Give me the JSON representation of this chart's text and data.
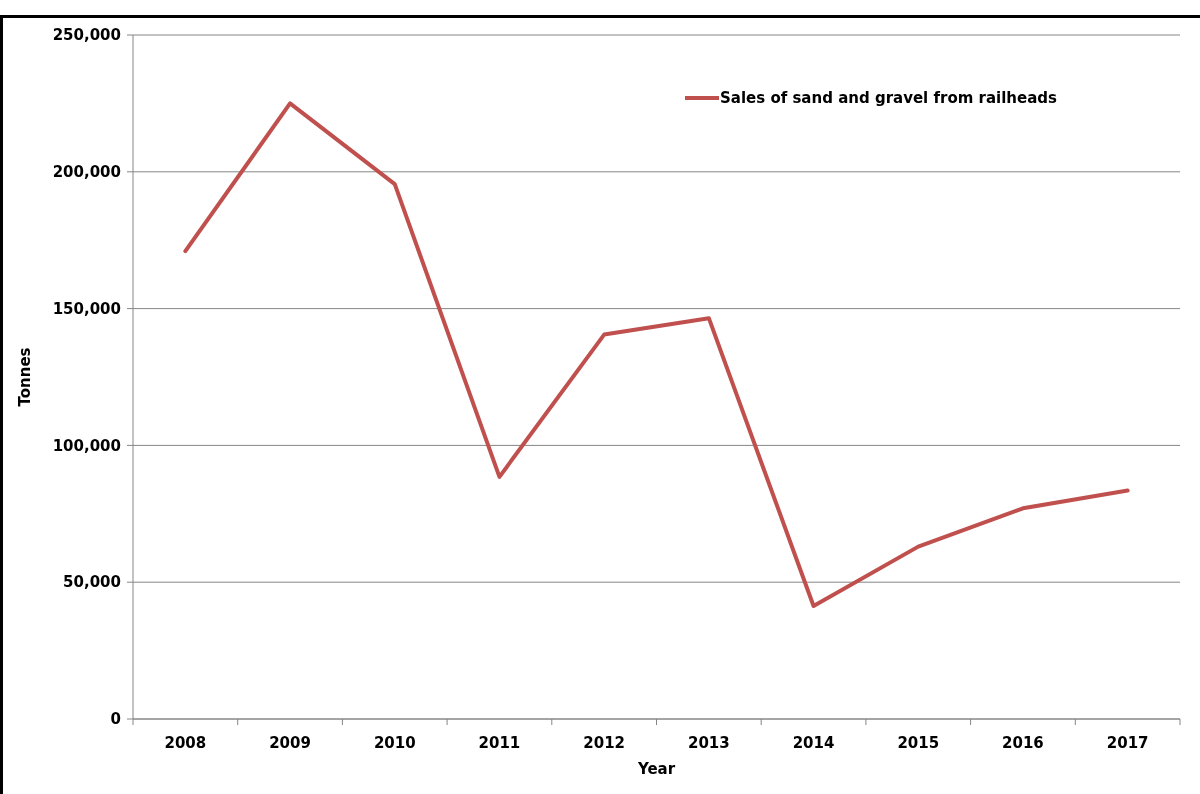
{
  "chart_data": {
    "type": "line",
    "xlabel": "Year",
    "ylabel": "Tonnes",
    "categories": [
      "2008",
      "2009",
      "2010",
      "2011",
      "2012",
      "2013",
      "2014",
      "2015",
      "2016",
      "2017"
    ],
    "series": [
      {
        "name": "Sales of sand and gravel from railheads",
        "color": "#c0504d",
        "values": [
          171000,
          225000,
          195500,
          88500,
          140500,
          146500,
          41300,
          63000,
          77000,
          83500
        ]
      }
    ],
    "ylim": [
      0,
      250000
    ],
    "yticks": [
      {
        "value": 0,
        "label": "0"
      },
      {
        "value": 50000,
        "label": "50,000"
      },
      {
        "value": 100000,
        "label": "100,000"
      },
      {
        "value": 150000,
        "label": "150,000"
      },
      {
        "value": 200000,
        "label": "200,000"
      },
      {
        "value": 250000,
        "label": "250,000"
      }
    ],
    "grid": "y",
    "legend": "top right",
    "marker": "none",
    "line_style": "solid"
  }
}
